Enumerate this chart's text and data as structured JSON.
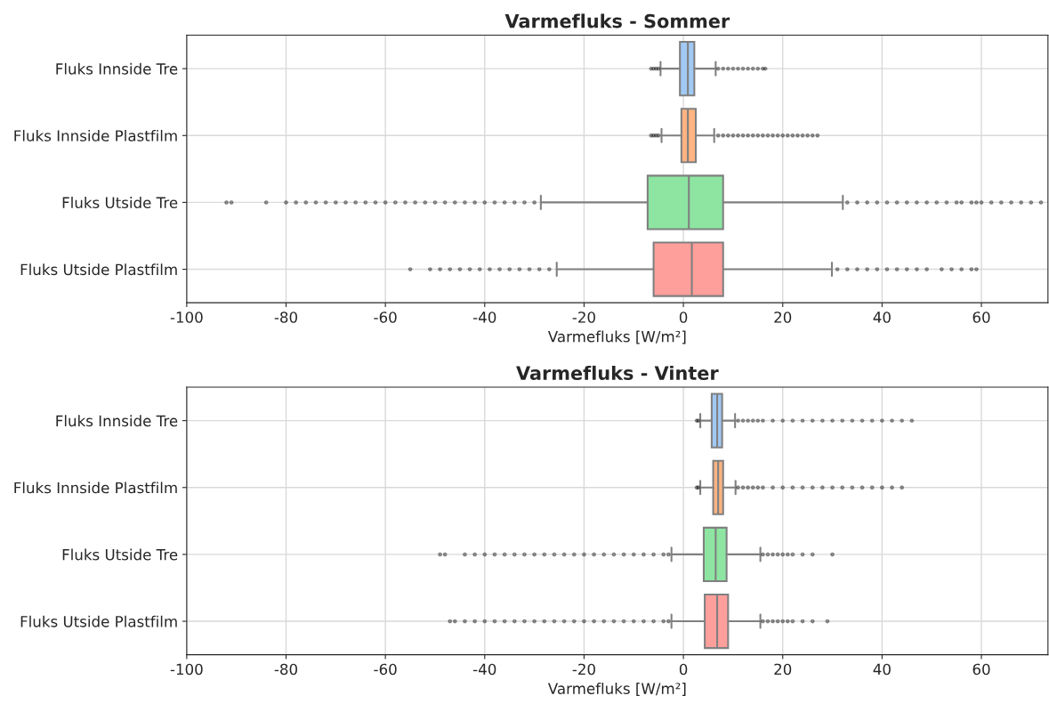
{
  "chart_data": [
    {
      "type": "box",
      "title": "Varmefluks - Sommer",
      "xlabel": "Varmefluks [W/m²]",
      "orientation": "horizontal",
      "grid": true,
      "categories": [
        "Fluks Innside Tre",
        "Fluks Innside Plastfilm",
        "Fluks Utside Tre",
        "Fluks Utside Plastfilm"
      ],
      "colors": [
        "#a1c9f4",
        "#ffb482",
        "#8de5a1",
        "#ff9f9b"
      ],
      "xlim": [
        -100,
        73.4
      ],
      "xticks": [
        -100,
        -80,
        -60,
        -40,
        -20,
        0,
        20,
        40,
        60
      ],
      "boxes": [
        {
          "low": -4.6,
          "q1": -0.7,
          "median": 0.9,
          "q3": 2.2,
          "high": 6.5,
          "outliers": [
            -6.5,
            -6.0,
            -5.5,
            -5.0,
            7,
            8,
            9,
            10,
            11,
            12,
            13,
            14,
            15,
            16,
            16.5
          ]
        },
        {
          "low": -4.4,
          "q1": -0.4,
          "median": 0.9,
          "q3": 2.5,
          "high": 6.2,
          "outliers": [
            -6.5,
            -6.0,
            -5.5,
            -5.0,
            7,
            8,
            9,
            10,
            11,
            12,
            13,
            14,
            15,
            16,
            17,
            18,
            19,
            20,
            21,
            22,
            23,
            24,
            25,
            26,
            27
          ]
        },
        {
          "low": -28.7,
          "q1": -7.2,
          "median": 1.1,
          "q3": 8.0,
          "high": 32.1,
          "outliers": [
            -92,
            -91,
            -84,
            -80,
            -78,
            -76,
            -74,
            -72,
            -70,
            -68,
            -66,
            -64,
            -62,
            -60,
            -58,
            -56,
            -54,
            -52,
            -50,
            -48,
            -46,
            -44,
            -42,
            -40,
            -38,
            -36,
            -34,
            -32,
            -30,
            33,
            35,
            37,
            39,
            41,
            43,
            45,
            47,
            49,
            51,
            53,
            55,
            56,
            58,
            59,
            60,
            62,
            64,
            66,
            68,
            70,
            72
          ]
        },
        {
          "low": -25.5,
          "q1": -6.0,
          "median": 1.7,
          "q3": 8.0,
          "high": 29.9,
          "outliers": [
            -55,
            -51,
            -49,
            -47,
            -45,
            -43,
            -41,
            -39,
            -37,
            -35,
            -33,
            -31,
            -29,
            -27,
            31,
            33,
            35,
            37,
            39,
            41,
            43,
            45,
            47,
            49,
            52,
            54,
            56,
            58,
            59
          ]
        }
      ]
    },
    {
      "type": "box",
      "title": "Varmefluks - Vinter",
      "xlabel": "Varmefluks [W/m²]",
      "orientation": "horizontal",
      "grid": true,
      "categories": [
        "Fluks Innside Tre",
        "Fluks Innside Plastfilm",
        "Fluks Utside Tre",
        "Fluks Utside Plastfilm"
      ],
      "colors": [
        "#a1c9f4",
        "#ffb482",
        "#8de5a1",
        "#ff9f9b"
      ],
      "xlim": [
        -100,
        73.4
      ],
      "xticks": [
        -100,
        -80,
        -60,
        -40,
        -20,
        0,
        20,
        40,
        60
      ],
      "boxes": [
        {
          "low": 3.4,
          "q1": 5.7,
          "median": 6.8,
          "q3": 7.8,
          "high": 10.4,
          "outliers": [
            2.7,
            3.0,
            11,
            12,
            13,
            14,
            15,
            16,
            18,
            20,
            22,
            24,
            26,
            28,
            30,
            32,
            34,
            36,
            38,
            40,
            42,
            44,
            46
          ]
        },
        {
          "low": 3.4,
          "q1": 6.0,
          "median": 7.0,
          "q3": 8.0,
          "high": 10.5,
          "outliers": [
            2.7,
            3.0,
            11,
            12,
            13,
            14,
            15,
            16,
            18,
            20,
            22,
            24,
            26,
            28,
            30,
            32,
            34,
            36,
            38,
            40,
            42,
            44
          ]
        },
        {
          "low": -2.4,
          "q1": 4.1,
          "median": 6.5,
          "q3": 8.7,
          "high": 15.5,
          "outliers": [
            -49,
            -48,
            -44,
            -42,
            -40,
            -38,
            -36,
            -34,
            -32,
            -30,
            -28,
            -26,
            -24,
            -22,
            -20,
            -18,
            -16,
            -14,
            -12,
            -10,
            -8,
            -6,
            -4,
            -3,
            16,
            17,
            18,
            19,
            20,
            21,
            22,
            24,
            26,
            30
          ]
        },
        {
          "low": -2.4,
          "q1": 4.3,
          "median": 6.8,
          "q3": 9.0,
          "high": 15.5,
          "outliers": [
            -47,
            -46,
            -44,
            -42,
            -40,
            -38,
            -36,
            -34,
            -32,
            -30,
            -28,
            -26,
            -24,
            -22,
            -20,
            -18,
            -16,
            -14,
            -12,
            -10,
            -8,
            -6,
            -4,
            -3,
            16,
            17,
            18,
            19,
            20,
            21,
            22,
            24,
            26,
            29
          ]
        }
      ]
    }
  ]
}
